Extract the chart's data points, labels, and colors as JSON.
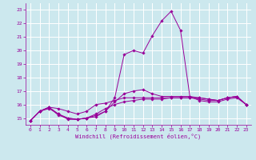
{
  "title": "",
  "xlabel": "Windchill (Refroidissement éolien,°C)",
  "bg_color": "#cce8ee",
  "line_color": "#990099",
  "grid_color": "#ffffff",
  "xlim": [
    -0.5,
    23.5
  ],
  "ylim": [
    14.5,
    23.5
  ],
  "yticks": [
    15,
    16,
    17,
    18,
    19,
    20,
    21,
    22,
    23
  ],
  "xticks": [
    0,
    1,
    2,
    3,
    4,
    5,
    6,
    7,
    8,
    9,
    10,
    11,
    12,
    13,
    14,
    15,
    16,
    17,
    18,
    19,
    20,
    21,
    22,
    23
  ],
  "series": [
    [
      14.8,
      15.5,
      15.7,
      15.3,
      14.9,
      14.9,
      15.0,
      15.1,
      15.5,
      16.5,
      19.7,
      20.0,
      19.8,
      21.1,
      22.2,
      22.9,
      21.5,
      16.6,
      16.3,
      16.2,
      16.2,
      16.4,
      16.5,
      16.0
    ],
    [
      14.8,
      15.5,
      15.8,
      15.7,
      15.5,
      15.3,
      15.5,
      16.0,
      16.1,
      16.3,
      16.5,
      16.5,
      16.5,
      16.5,
      16.5,
      16.5,
      16.5,
      16.5,
      16.5,
      16.4,
      16.3,
      16.5,
      16.6,
      16.0
    ],
    [
      14.8,
      15.5,
      15.8,
      15.2,
      15.0,
      14.9,
      15.0,
      15.3,
      15.7,
      16.0,
      16.2,
      16.3,
      16.4,
      16.4,
      16.4,
      16.5,
      16.5,
      16.5,
      16.4,
      16.3,
      16.3,
      16.5,
      16.6,
      16.0
    ],
    [
      14.8,
      15.5,
      15.8,
      15.3,
      15.0,
      14.9,
      15.0,
      15.2,
      15.5,
      16.2,
      16.8,
      17.0,
      17.1,
      16.8,
      16.6,
      16.6,
      16.6,
      16.6,
      16.5,
      16.4,
      16.3,
      16.5,
      16.6,
      16.0
    ]
  ]
}
